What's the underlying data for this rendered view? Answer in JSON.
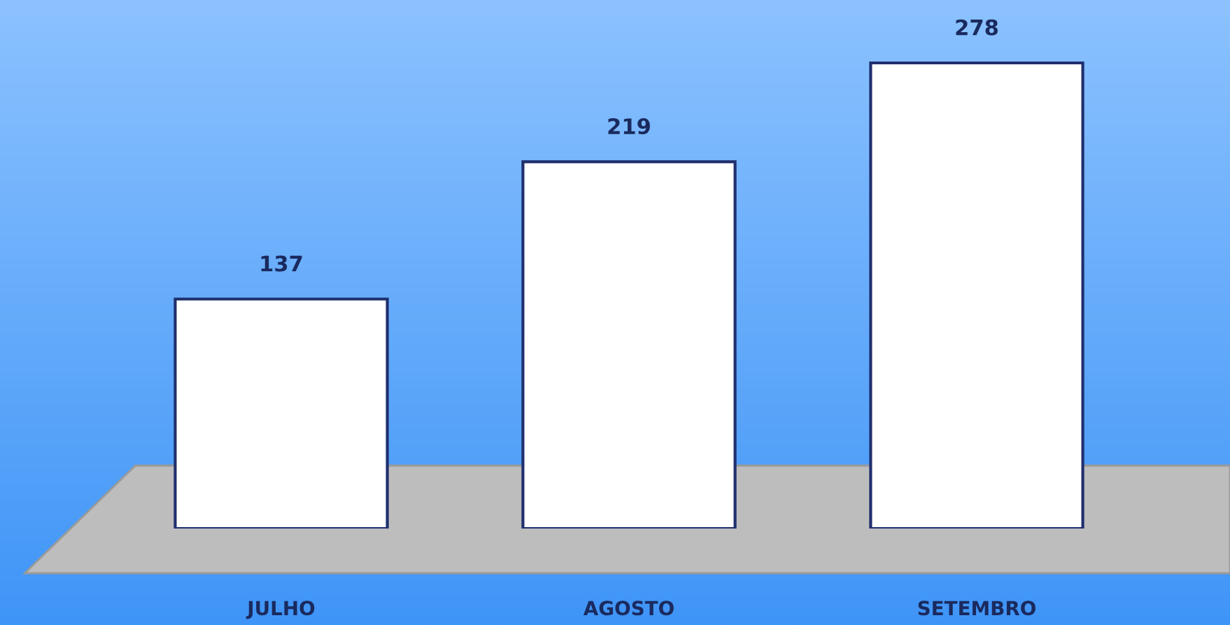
{
  "chart_data": {
    "type": "bar",
    "categories": [
      "JULHO",
      "AGOSTO",
      "SETEMBRO"
    ],
    "values": [
      137,
      219,
      278
    ],
    "color": "#ffffff",
    "data_labels": true,
    "grid": false,
    "legend": false
  }
}
